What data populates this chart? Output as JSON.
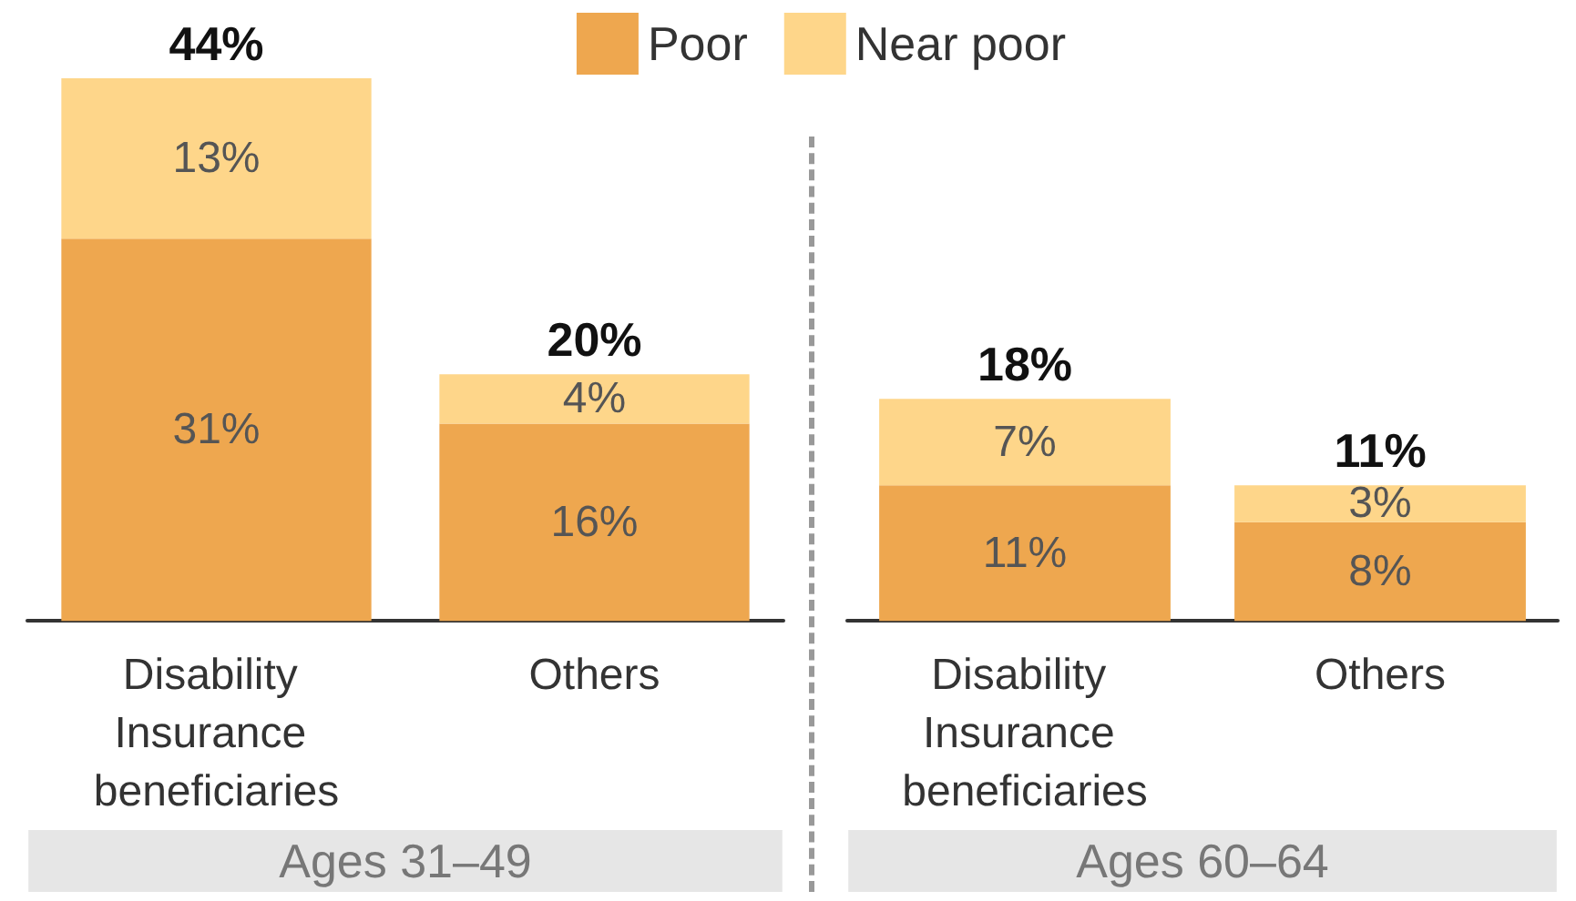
{
  "chart_data": [
    {
      "type": "bar",
      "stacked": true,
      "xlabel": "Ages 31–49",
      "categories": [
        "Disability Insurance beneficiaries",
        "Others"
      ],
      "tick_labels": "x",
      "legend": "top right",
      "series": [
        {
          "name": "Poor",
          "color": "#eea74f",
          "values": [
            31,
            16
          ],
          "value_labels": [
            "31%",
            "16%"
          ]
        },
        {
          "name": "Near poor",
          "color": "#fed68a",
          "values": [
            13,
            4
          ],
          "value_labels": [
            "13%",
            "4%"
          ]
        }
      ],
      "totals": [
        "44%",
        "20%"
      ]
    },
    {
      "type": "bar",
      "stacked": true,
      "xlabel": "Ages 60–64",
      "categories": [
        "Disability Insurance beneficiaries",
        "Others"
      ],
      "tick_labels": "x",
      "series": [
        {
          "color": "#eea74f",
          "values": [
            11,
            8
          ],
          "value_labels": [
            "11%",
            "8%"
          ]
        },
        {
          "color": "#fed68a",
          "values": [
            7,
            3
          ],
          "value_labels": [
            "7%",
            "3%"
          ]
        }
      ],
      "totals": [
        "18%",
        "11%"
      ]
    }
  ]
}
